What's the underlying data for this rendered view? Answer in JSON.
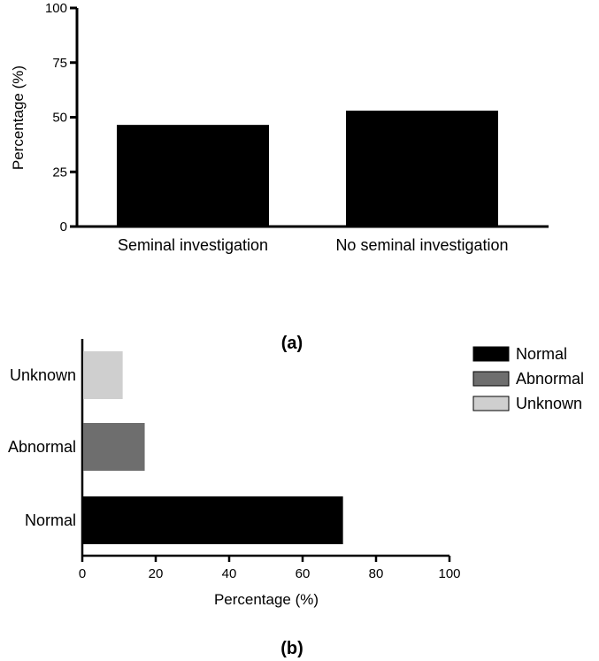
{
  "chart_data": [
    {
      "type": "bar",
      "orientation": "vertical",
      "panel_label": "(a)",
      "categories": [
        "Seminal investigation",
        "No seminal investigation"
      ],
      "values": [
        46.5,
        53
      ],
      "ylabel": "Percentage  (%)",
      "ylim": [
        0,
        100
      ],
      "yticks": [
        "0",
        "25",
        "50",
        "75",
        "100"
      ],
      "grid": false,
      "bar_color": "#000000"
    },
    {
      "type": "bar",
      "orientation": "horizontal",
      "panel_label": "(b)",
      "categories": [
        "Normal",
        "Abnormal",
        "Unknown"
      ],
      "values": [
        71,
        17,
        11
      ],
      "colors": [
        "#000000",
        "#6e6e6e",
        "#cfcfcf"
      ],
      "xlabel": "Percentage (%)",
      "xlim": [
        0,
        100
      ],
      "xticks": [
        "0",
        "20",
        "40",
        "60",
        "80",
        "100"
      ],
      "grid": false,
      "legend": {
        "placement": "top-right",
        "entries": [
          "Normal",
          "Abnormal",
          "Unknown"
        ]
      }
    }
  ]
}
